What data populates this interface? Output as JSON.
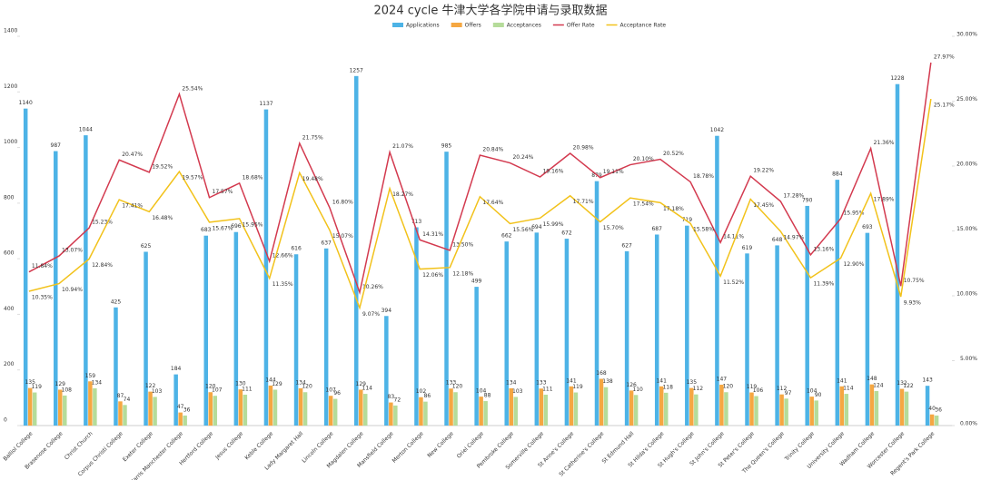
{
  "chart_data": {
    "type": "bar-line",
    "title": "2024 cycle 牛津大学各学院申请与录取数据",
    "categories": [
      "Balliol College",
      "Brasenose College",
      "Christ Church",
      "Corpus Christi College",
      "Exeter College",
      "Harris Manchester College",
      "Hertford College",
      "Jesus College",
      "Keble College",
      "Lady Margaret Hall",
      "Lincoln College",
      "Magdalen College",
      "Mansfield College",
      "Merton College",
      "New College",
      "Oriel College",
      "Pembroke College",
      "Somerville College",
      "St Anne's College",
      "St Catherine's College",
      "St Edmund Hall",
      "St Hilda's College",
      "St Hugh's College",
      "St John's College",
      "St Peter's College",
      "The Queen's College",
      "Trinity College",
      "University College",
      "Wadham College",
      "Worcester College",
      "Regent's Park College"
    ],
    "series": [
      {
        "name": "Applications",
        "type": "bar",
        "color": "#4db3e6",
        "values": [
          1140,
          987,
          1044,
          425,
          625,
          184,
          683,
          696,
          1137,
          616,
          637,
          1257,
          394,
          713,
          985,
          499,
          662,
          694,
          672,
          879,
          627,
          687,
          719,
          1042,
          619,
          648,
          790,
          884,
          693,
          1228,
          143
        ]
      },
      {
        "name": "Offers",
        "type": "bar",
        "color": "#f5a742",
        "values": [
          135,
          129,
          159,
          87,
          122,
          47,
          120,
          130,
          144,
          134,
          107,
          129,
          83,
          102,
          133,
          104,
          134,
          133,
          141,
          168,
          126,
          141,
          135,
          147,
          119,
          112,
          104,
          141,
          148,
          132,
          40
        ]
      },
      {
        "name": "Acceptances",
        "type": "bar",
        "color": "#b5dc9a",
        "values": [
          119,
          108,
          134,
          74,
          103,
          36,
          107,
          111,
          129,
          120,
          96,
          114,
          72,
          86,
          120,
          88,
          103,
          111,
          119,
          138,
          110,
          118,
          112,
          120,
          106,
          97,
          90,
          114,
          124,
          122,
          36
        ]
      },
      {
        "name": "Offer Rate",
        "type": "line",
        "axis": "y2",
        "color": "#d33a4f",
        "values": [
          11.84,
          13.07,
          15.23,
          20.47,
          19.52,
          25.54,
          17.57,
          18.68,
          12.66,
          21.75,
          16.8,
          10.26,
          21.07,
          14.31,
          13.5,
          20.84,
          20.24,
          19.16,
          20.98,
          19.11,
          20.1,
          20.52,
          18.78,
          14.11,
          19.22,
          17.28,
          13.16,
          15.95,
          21.36,
          10.75,
          27.97
        ],
        "value_labels": [
          "11.84%",
          "13.07%",
          "15.23%",
          "20.47%",
          "19.52%",
          "25.54%",
          "17.57%",
          "18.68%",
          "12.66%",
          "21.75%",
          "16.80%",
          "10.26%",
          "21.07%",
          "14.31%",
          "13.50%",
          "20.84%",
          "20.24%",
          "19.16%",
          "20.98%",
          "19.11%",
          "20.10%",
          "20.52%",
          "18.78%",
          "14.11%",
          "19.22%",
          "17.28%",
          "13.16%",
          "15.95%",
          "21.36%",
          "10.75%",
          "27.97%"
        ]
      },
      {
        "name": "Acceptance Rate",
        "type": "line",
        "axis": "y2",
        "color": "#f2c21b",
        "values": [
          10.35,
          10.94,
          12.84,
          17.41,
          16.48,
          19.57,
          15.67,
          15.95,
          11.35,
          19.48,
          15.07,
          9.07,
          18.27,
          12.06,
          12.18,
          17.64,
          15.56,
          15.99,
          17.71,
          15.7,
          17.54,
          17.18,
          15.58,
          11.52,
          17.45,
          14.97,
          11.39,
          12.9,
          17.89,
          9.93,
          25.17
        ],
        "value_labels": [
          "10.35%",
          "10.94%",
          "12.84%",
          "17.41%",
          "16.48%",
          "19.57%",
          "15.67%",
          "15.95%",
          "11.35%",
          "19.48%",
          "15.07%",
          "9.07%",
          "18.27%",
          "12.06%",
          "12.18%",
          "17.64%",
          "15.56%",
          "15.99%",
          "17.71%",
          "15.70%",
          "17.54%",
          "17.18%",
          "15.58%",
          "11.52%",
          "17.45%",
          "14.97%",
          "11.39%",
          "12.90%",
          "17.89%",
          "9.93%",
          "25.17%"
        ]
      }
    ],
    "ylim": [
      0,
      1400
    ],
    "yticks": [
      0,
      200,
      400,
      600,
      800,
      1000,
      1200,
      1400
    ],
    "y2lim": [
      0,
      30
    ],
    "y2ticks": [
      {
        "value": 0,
        "label": "0.00%"
      },
      {
        "value": 5,
        "label": "5.00%"
      },
      {
        "value": 10,
        "label": "10.00%"
      },
      {
        "value": 15,
        "label": "15.00%"
      },
      {
        "value": 20,
        "label": "20.00%"
      },
      {
        "value": 25,
        "label": "25.00%"
      },
      {
        "value": 30,
        "label": "30.00%"
      }
    ],
    "legend": "top"
  }
}
